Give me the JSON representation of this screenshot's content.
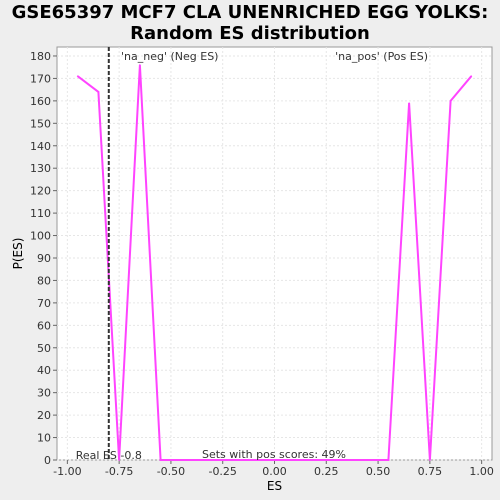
{
  "title_line1": "GSE65397 MCF7 CLA UNENRICHED EGG YOLKS:",
  "title_line2": "Random ES distribution",
  "chart_data": {
    "type": "line",
    "xlabel": "ES",
    "ylabel": "P(ES)",
    "xlim": [
      -1.05,
      1.05
    ],
    "ylim": [
      0,
      184
    ],
    "xticks": [
      -1.0,
      -0.75,
      -0.5,
      -0.25,
      0.0,
      0.25,
      0.5,
      0.75,
      1.0
    ],
    "xtick_labels": [
      "-1.00",
      "-0.75",
      "-0.50",
      "-0.25",
      "0.00",
      "0.25",
      "0.50",
      "0.75",
      "1.00"
    ],
    "yticks": [
      0,
      10,
      20,
      30,
      40,
      50,
      60,
      70,
      80,
      90,
      100,
      110,
      120,
      130,
      140,
      150,
      160,
      170,
      180
    ],
    "grid": true,
    "series": [
      {
        "color": "#ff44ff",
        "x": [
          -0.95,
          -0.85,
          -0.75,
          -0.65,
          -0.55,
          -0.45,
          -0.35,
          -0.25,
          -0.15,
          -0.05,
          0.05,
          0.15,
          0.25,
          0.35,
          0.45,
          0.55,
          0.65,
          0.75,
          0.85,
          0.95
        ],
        "y": [
          171,
          164,
          0,
          176,
          0,
          0,
          0,
          0,
          0,
          0,
          0,
          0,
          0,
          0,
          0,
          0,
          159,
          0,
          160,
          171
        ]
      }
    ],
    "real_es": {
      "x": -0.8,
      "label": "Real ES -0.8"
    },
    "annotations": {
      "neg_label": "'na_neg' (Neg ES)",
      "pos_label": "'na_pos' (Pos ES)",
      "neg_color": "#4444dd",
      "pos_color": "#dd3333",
      "sets_label": "Sets with pos scores: 49%"
    }
  }
}
